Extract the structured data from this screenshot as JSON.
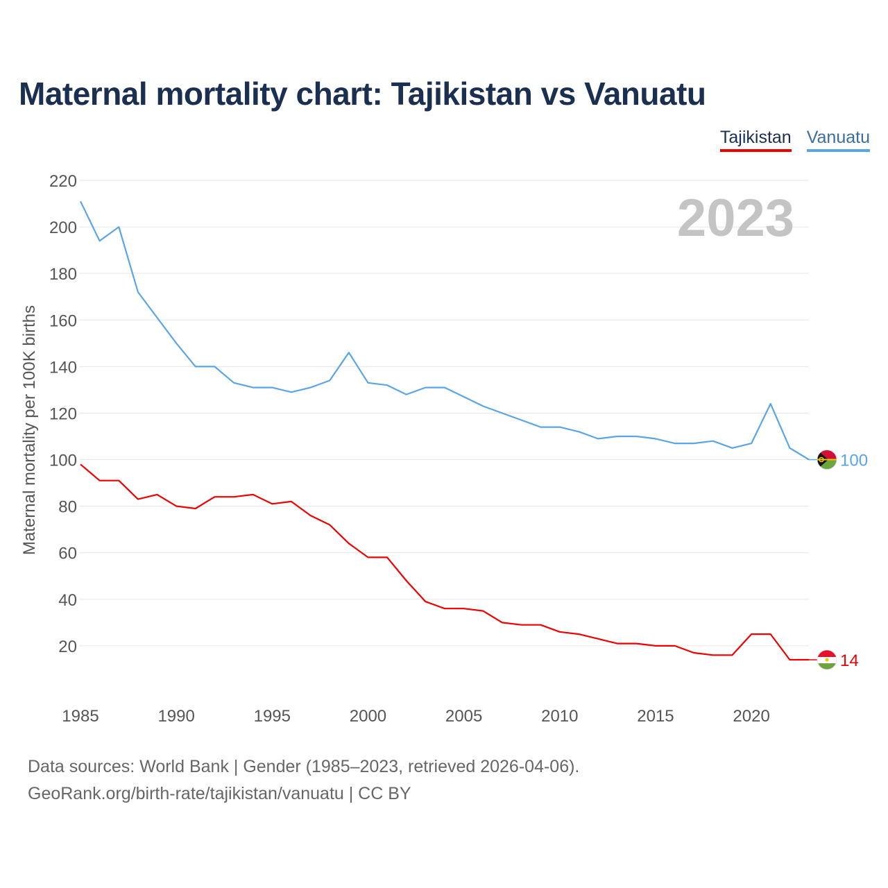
{
  "title": "Maternal mortality chart: Tajikistan vs Vanuatu",
  "legend": [
    {
      "label": "Tajikistan",
      "color": "#ee0000"
    },
    {
      "label": "Vanuatu",
      "color": "#5aa5e6"
    }
  ],
  "sources": {
    "line1": "Data sources: World Bank | Gender (1985–2023, retrieved 2026-04-06).",
    "line2": "GeoRank.org/birth-rate/tajikistan/vanuatu | CC BY"
  },
  "chart_data": {
    "type": "line",
    "year_label": "2023",
    "ylabel": "Maternal mortality per 100K births",
    "xlabel": "",
    "xlim": [
      1985,
      2023
    ],
    "ylim": [
      0,
      220
    ],
    "x_ticks": [
      1985,
      1990,
      1995,
      2000,
      2005,
      2010,
      2015,
      2020
    ],
    "y_ticks": [
      20,
      40,
      60,
      80,
      100,
      120,
      140,
      160,
      180,
      200,
      220
    ],
    "x": [
      1985,
      1986,
      1987,
      1988,
      1989,
      1990,
      1991,
      1992,
      1993,
      1994,
      1995,
      1996,
      1997,
      1998,
      1999,
      2000,
      2001,
      2002,
      2003,
      2004,
      2005,
      2006,
      2007,
      2008,
      2009,
      2010,
      2011,
      2012,
      2013,
      2014,
      2015,
      2016,
      2017,
      2018,
      2019,
      2020,
      2021,
      2022,
      2023
    ],
    "series": [
      {
        "name": "Tajikistan",
        "color": "#ee0000",
        "end_label": "14",
        "values": [
          98,
          91,
          91,
          83,
          85,
          80,
          79,
          84,
          84,
          85,
          81,
          82,
          76,
          72,
          64,
          58,
          58,
          48,
          39,
          36,
          36,
          35,
          30,
          29,
          29,
          26,
          25,
          23,
          21,
          21,
          20,
          20,
          17,
          16,
          16,
          25,
          25,
          14,
          14
        ]
      },
      {
        "name": "Vanuatu",
        "color": "#5aa5e6",
        "end_label": "100",
        "values": [
          211,
          194,
          200,
          172,
          161,
          150,
          140,
          140,
          133,
          131,
          131,
          129,
          131,
          134,
          146,
          133,
          132,
          128,
          131,
          131,
          127,
          123,
          120,
          117,
          114,
          114,
          112,
          109,
          110,
          110,
          109,
          107,
          107,
          108,
          105,
          107,
          124,
          105,
          100
        ]
      }
    ]
  }
}
